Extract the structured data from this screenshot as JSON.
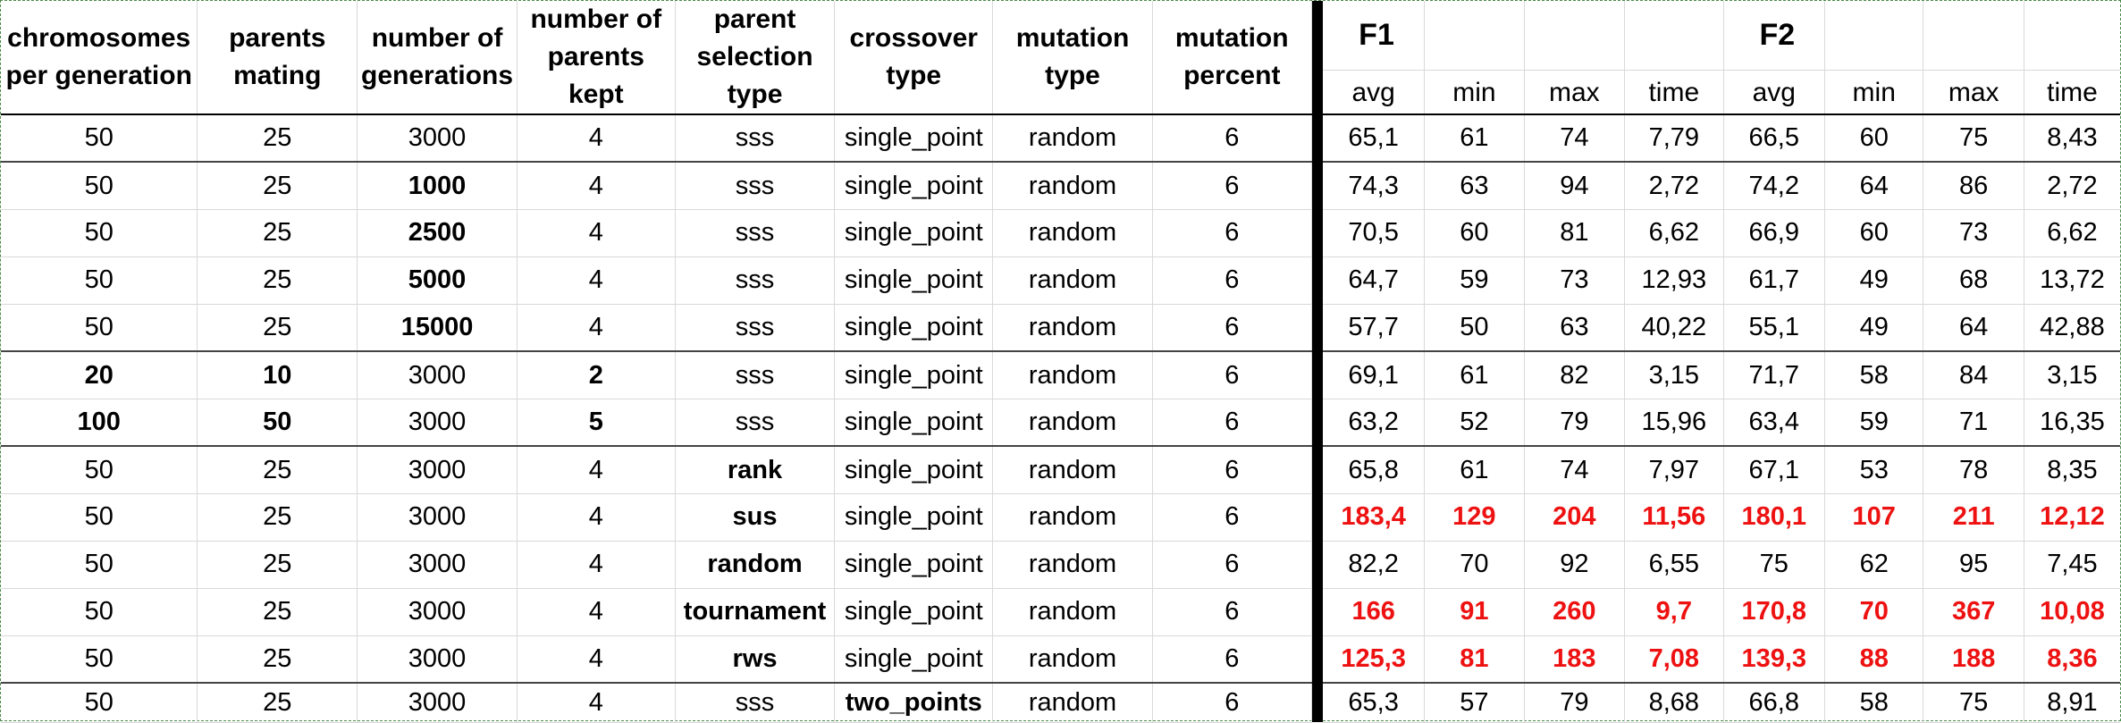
{
  "headers": {
    "chromosomes_per_generation": "chromosomes per generation",
    "parents_mating": "parents mating",
    "number_of_generations": "number of generations",
    "number_of_parents_kept": "number of parents kept",
    "parent_selection_type": "parent selection type",
    "crossover_type": "crossover type",
    "mutation_type": "mutation type",
    "mutation_percent": "mutation percent",
    "f1": "F1",
    "f2": "F2",
    "stats": [
      "avg",
      "min",
      "max",
      "time",
      "avg",
      "min",
      "max",
      "time"
    ]
  },
  "rows": [
    {
      "c": [
        "50",
        "25",
        "3000",
        "4",
        "sss",
        "single_point",
        "random",
        "6",
        "65,1",
        "61",
        "74",
        "7,79",
        "66,5",
        "60",
        "75",
        "8,43"
      ],
      "bold": [],
      "red": false
    },
    {
      "c": [
        "50",
        "25",
        "1000",
        "4",
        "sss",
        "single_point",
        "random",
        "6",
        "74,3",
        "63",
        "94",
        "2,72",
        "74,2",
        "64",
        "86",
        "2,72"
      ],
      "bold": [
        2
      ],
      "red": false
    },
    {
      "c": [
        "50",
        "25",
        "2500",
        "4",
        "sss",
        "single_point",
        "random",
        "6",
        "70,5",
        "60",
        "81",
        "6,62",
        "66,9",
        "60",
        "73",
        "6,62"
      ],
      "bold": [
        2
      ],
      "red": false
    },
    {
      "c": [
        "50",
        "25",
        "5000",
        "4",
        "sss",
        "single_point",
        "random",
        "6",
        "64,7",
        "59",
        "73",
        "12,93",
        "61,7",
        "49",
        "68",
        "13,72"
      ],
      "bold": [
        2
      ],
      "red": false
    },
    {
      "c": [
        "50",
        "25",
        "15000",
        "4",
        "sss",
        "single_point",
        "random",
        "6",
        "57,7",
        "50",
        "63",
        "40,22",
        "55,1",
        "49",
        "64",
        "42,88"
      ],
      "bold": [
        2
      ],
      "red": false
    },
    {
      "c": [
        "20",
        "10",
        "3000",
        "2",
        "sss",
        "single_point",
        "random",
        "6",
        "69,1",
        "61",
        "82",
        "3,15",
        "71,7",
        "58",
        "84",
        "3,15"
      ],
      "bold": [
        0,
        1,
        3
      ],
      "red": false
    },
    {
      "c": [
        "100",
        "50",
        "3000",
        "5",
        "sss",
        "single_point",
        "random",
        "6",
        "63,2",
        "52",
        "79",
        "15,96",
        "63,4",
        "59",
        "71",
        "16,35"
      ],
      "bold": [
        0,
        1,
        3
      ],
      "red": false
    },
    {
      "c": [
        "50",
        "25",
        "3000",
        "4",
        "rank",
        "single_point",
        "random",
        "6",
        "65,8",
        "61",
        "74",
        "7,97",
        "67,1",
        "53",
        "78",
        "8,35"
      ],
      "bold": [
        4
      ],
      "red": false
    },
    {
      "c": [
        "50",
        "25",
        "3000",
        "4",
        "sus",
        "single_point",
        "random",
        "6",
        "183,4",
        "129",
        "204",
        "11,56",
        "180,1",
        "107",
        "211",
        "12,12"
      ],
      "bold": [
        4
      ],
      "red": true
    },
    {
      "c": [
        "50",
        "25",
        "3000",
        "4",
        "random",
        "single_point",
        "random",
        "6",
        "82,2",
        "70",
        "92",
        "6,55",
        "75",
        "62",
        "95",
        "7,45"
      ],
      "bold": [
        4
      ],
      "red": false
    },
    {
      "c": [
        "50",
        "25",
        "3000",
        "4",
        "tournament",
        "single_point",
        "random",
        "6",
        "166",
        "91",
        "260",
        "9,7",
        "170,8",
        "70",
        "367",
        "10,08"
      ],
      "bold": [
        4
      ],
      "red": true
    },
    {
      "c": [
        "50",
        "25",
        "3000",
        "4",
        "rws",
        "single_point",
        "random",
        "6",
        "125,3",
        "81",
        "183",
        "7,08",
        "139,3",
        "88",
        "188",
        "8,36"
      ],
      "bold": [
        4
      ],
      "red": true
    },
    {
      "c": [
        "50",
        "25",
        "3000",
        "4",
        "sss",
        "two_points",
        "random",
        "6",
        "65,3",
        "57",
        "79",
        "8,68",
        "66,8",
        "58",
        "75",
        "8,91"
      ],
      "bold": [
        5
      ],
      "red": false
    }
  ]
}
